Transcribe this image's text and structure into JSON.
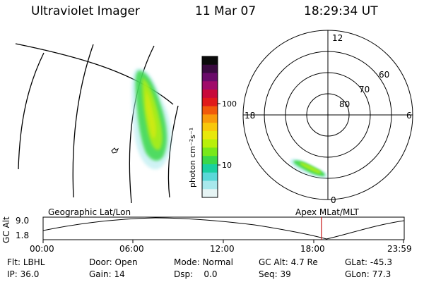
{
  "header": {
    "title": "Ultraviolet Imager",
    "date": "11 Mar 07",
    "time": "18:29:34 UT"
  },
  "colorbar": {
    "unit_label": "photon cm⁻²s⁻¹",
    "ticks": [
      "100",
      "10"
    ],
    "colors": [
      "#0a0a0a",
      "#3a0a40",
      "#6a0a6a",
      "#a00a6a",
      "#c80a3a",
      "#e01a1a",
      "#f05a0a",
      "#f89a0a",
      "#f8c80a",
      "#e8e80a",
      "#b8f00a",
      "#78e81a",
      "#3ad84a",
      "#1ad0a0",
      "#5ad8d8",
      "#a8e8ec",
      "#e6f4f4"
    ]
  },
  "polar": {
    "mlt_labels": {
      "top": "12",
      "left": "18",
      "right": "6",
      "bottom": "0"
    },
    "lat_labels": [
      "60",
      "70",
      "80"
    ]
  },
  "timeline": {
    "ylabel": "GC Alt",
    "ymax": "9.0",
    "ymin": "1.8",
    "left_label": "Geographic Lat/Lon",
    "right_label": "Apex MLat/MLT",
    "time_ticks": [
      "00:00",
      "06:00",
      "12:00",
      "18:00",
      "23:59"
    ],
    "current_time_fraction": 0.7708
  },
  "info": {
    "row1": [
      {
        "label": "Flt:",
        "value": "LBHL"
      },
      {
        "label": "Door:",
        "value": "Open"
      },
      {
        "label": "Mode:",
        "value": "Normal"
      },
      {
        "label": "GC Alt:",
        "value": "4.7 Re"
      },
      {
        "label": "GLat:",
        "value": "-45.3"
      }
    ],
    "row2": [
      {
        "label": "IP:",
        "value": "36.0"
      },
      {
        "label": "Gain:",
        "value": "14"
      },
      {
        "label": "Dsp:",
        "value": "0.0"
      },
      {
        "label": "Seq:",
        "value": "39"
      },
      {
        "label": "GLon:",
        "value": "77.3"
      }
    ]
  }
}
